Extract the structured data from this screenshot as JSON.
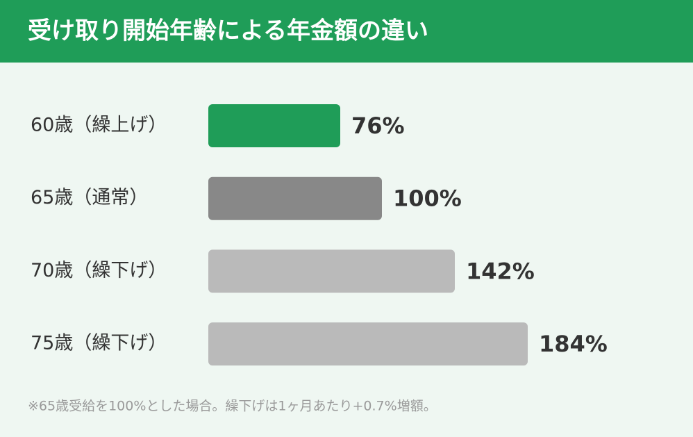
{
  "chart_data": {
    "type": "bar",
    "orientation": "horizontal",
    "title": "受け取り開始年齢による年金額の違い",
    "categories": [
      "60歳（繰上げ）",
      "65歳（通常）",
      "70歳（繰下げ）",
      "75歳（繰下げ）"
    ],
    "values": [
      76,
      100,
      142,
      184
    ],
    "value_labels": [
      "76%",
      "100%",
      "142%",
      "184%"
    ],
    "colors": [
      "#1f9d58",
      "#888888",
      "#bababa",
      "#bababa"
    ],
    "note": "※65歳受給を100%とした場合。繰下げは1ヶ月あたり+0.7%増額。"
  }
}
